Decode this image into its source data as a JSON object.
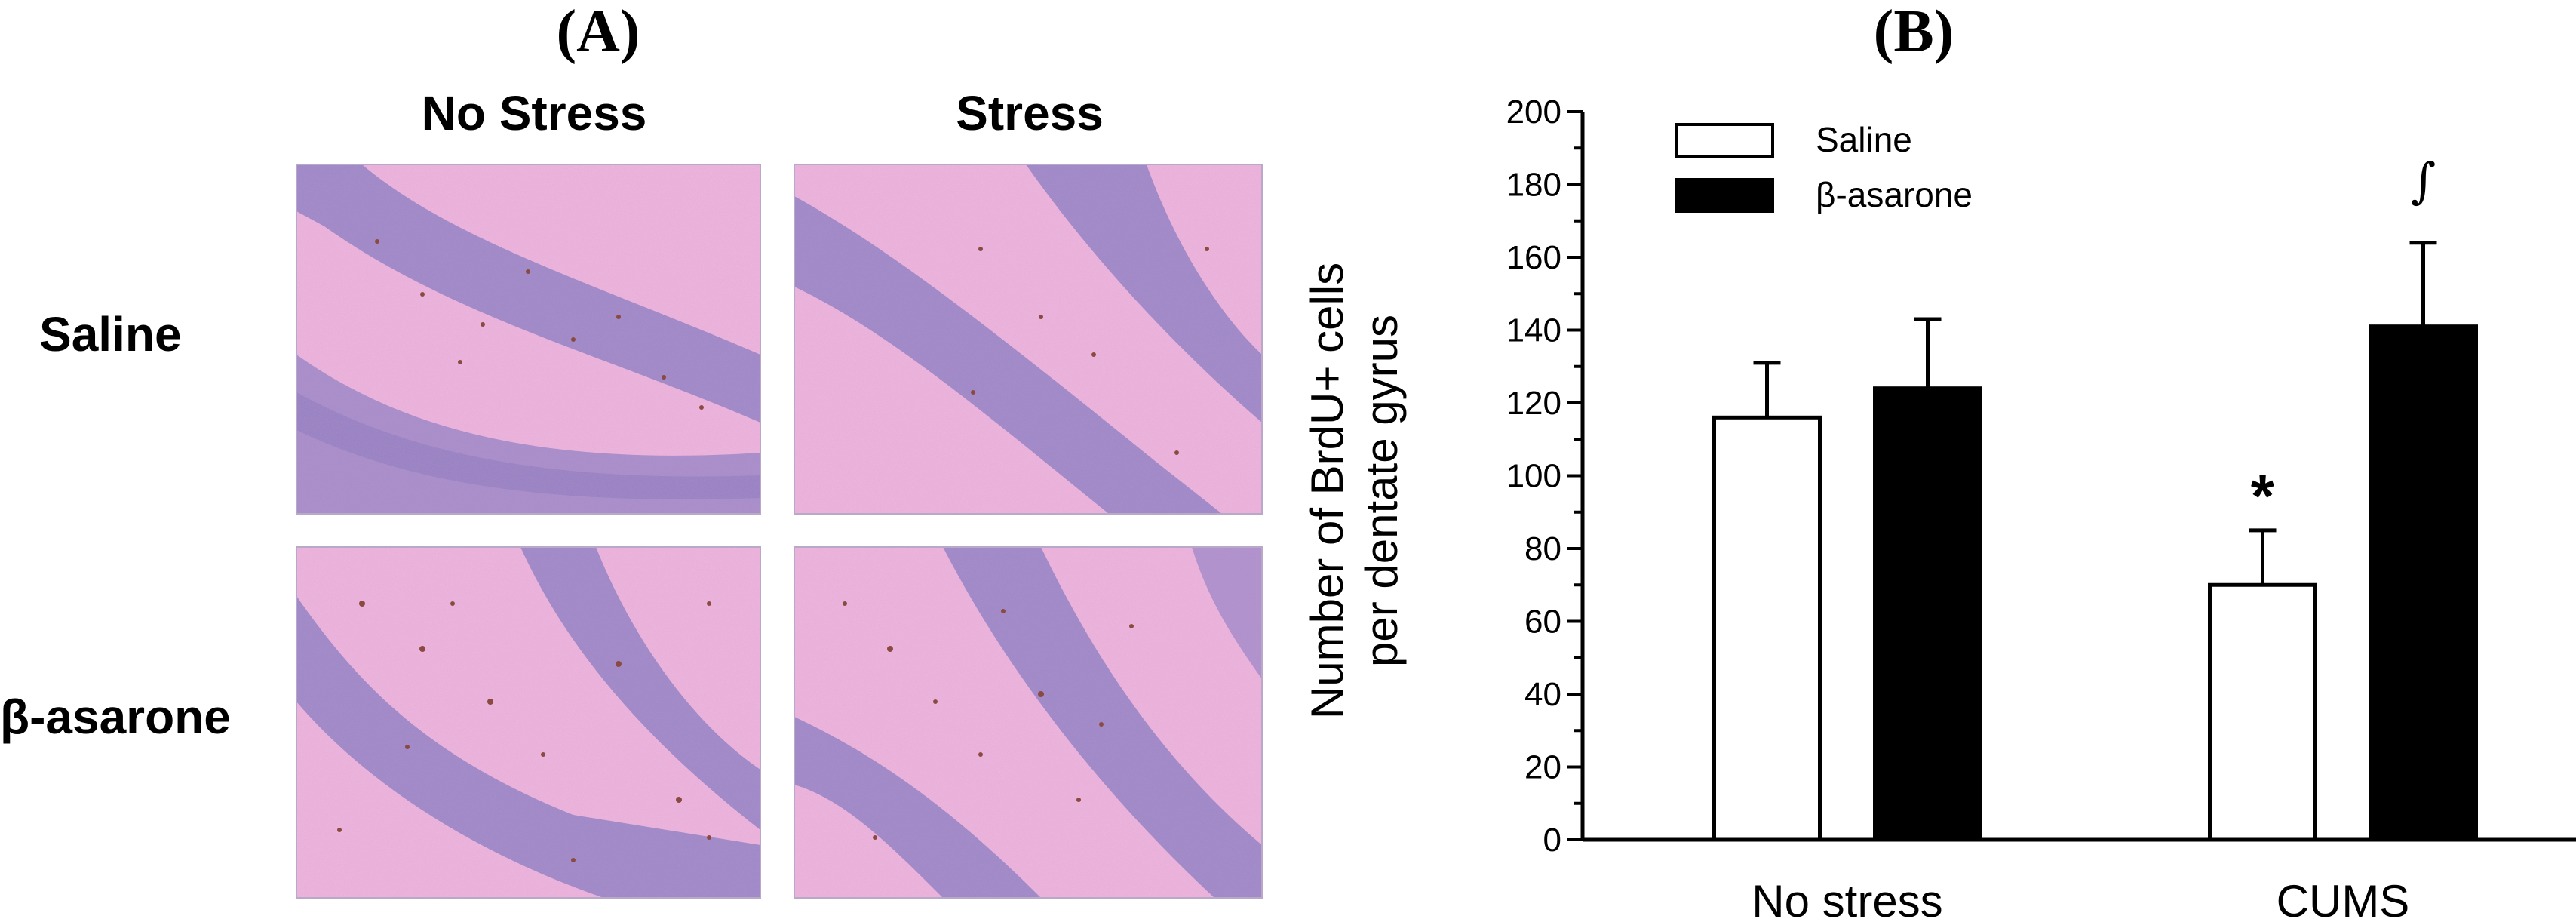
{
  "panel_a": {
    "letter": "(A)",
    "columns": [
      "No Stress",
      "Stress"
    ],
    "rows": [
      "Saline",
      "β-asarone"
    ],
    "image_colors": {
      "background": "#f2b6e0",
      "cell_band": "#9b86c9",
      "band_dark": "#8a78c0",
      "dot": "#8b4a3f"
    }
  },
  "panel_b": {
    "letter": "(B)"
  },
  "chart_data": {
    "type": "bar",
    "title": "",
    "categories": [
      "No stress",
      "CUMS"
    ],
    "series": [
      {
        "name": "Saline",
        "values": [
          116,
          70
        ],
        "errors": [
          15,
          15
        ],
        "fill": "#ffffff"
      },
      {
        "name": "β-asarone",
        "values": [
          124,
          141
        ],
        "errors": [
          19,
          23
        ],
        "fill": "#000000"
      }
    ],
    "ylabel_lines": [
      "Number of BrdU+ cells",
      "per dentate gyrus"
    ],
    "xlabel": "",
    "ylim": [
      0,
      200
    ],
    "yticks": [
      "0",
      "20",
      "40",
      "60",
      "80",
      "100",
      "120",
      "140",
      "160",
      "180",
      "200"
    ],
    "legend_position": "top-left",
    "annotations": [
      {
        "category": "CUMS",
        "series": "Saline",
        "text": "*"
      },
      {
        "category": "CUMS",
        "series": "β-asarone",
        "text": "∫"
      }
    ],
    "grid": false
  }
}
